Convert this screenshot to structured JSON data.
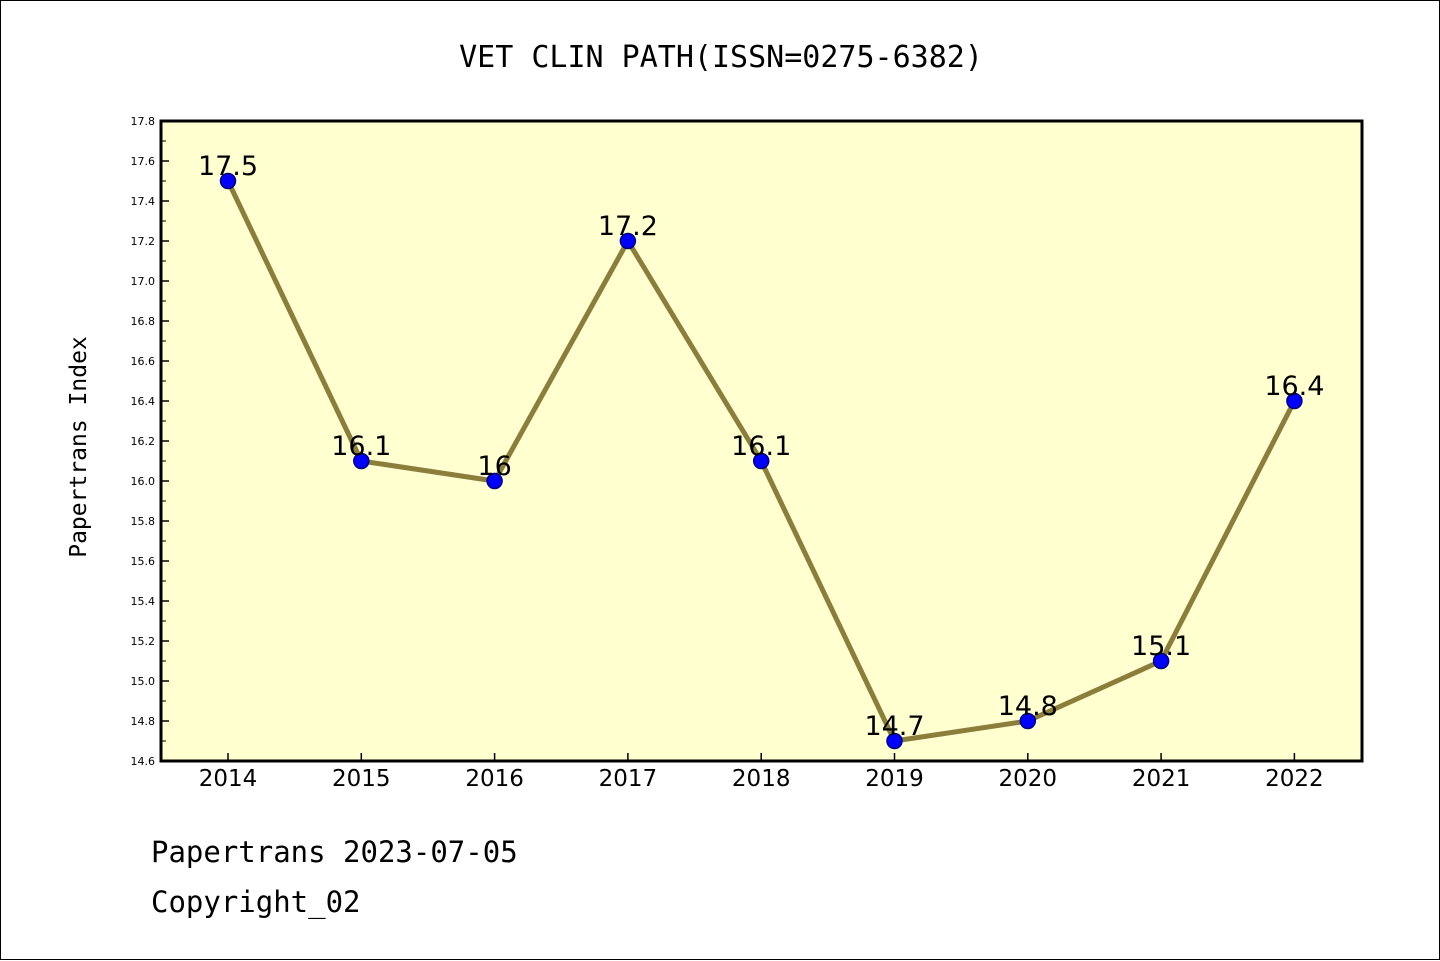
{
  "chart_data": {
    "type": "line",
    "title": "VET CLIN PATH(ISSN=0275-6382)",
    "xlabel": "",
    "ylabel": "Papertrans Index",
    "categories": [
      "2014",
      "2015",
      "2016",
      "2017",
      "2018",
      "2019",
      "2020",
      "2021",
      "2022"
    ],
    "series": [
      {
        "values": [
          17.5,
          16.1,
          16.0,
          17.2,
          16.1,
          14.7,
          14.8,
          15.1,
          16.4
        ],
        "data_labels": [
          "17.5",
          "16.1",
          "16",
          "17.2",
          "16.1",
          "14.7",
          "14.8",
          "15.1",
          "16.4"
        ]
      }
    ],
    "ylim": [
      14.6,
      17.8
    ],
    "yticks": [
      "14.6",
      "14.8",
      "15.0",
      "15.2",
      "15.4",
      "15.6",
      "15.8",
      "16.0",
      "16.2",
      "16.4",
      "16.6",
      "16.8",
      "17.0",
      "17.2",
      "17.4",
      "17.6",
      "17.8"
    ],
    "grid": false,
    "legend": "none",
    "colors": {
      "plot_background": "#ffffd0",
      "line": "#8b7d3a",
      "marker": "#0000ff",
      "marker_edge": "#000080"
    }
  },
  "footer": {
    "line1": "Papertrans 2023-07-05",
    "line2": "Copyright_02"
  }
}
